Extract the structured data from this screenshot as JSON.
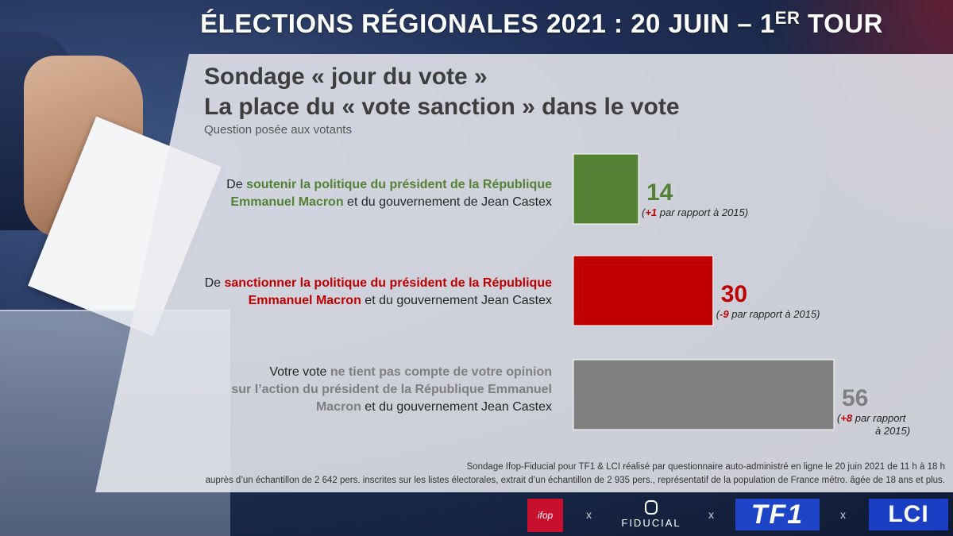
{
  "header": {
    "title_main": "ÉLECTIONS RÉGIONALES 2021 : 20 JUIN – 1",
    "title_sup": "ER",
    "title_end": " TOUR"
  },
  "titles": {
    "line1": "Sondage « jour du vote »",
    "line2": "La place du « vote sanction » dans le vote",
    "question": "Question posée aux votants"
  },
  "items": [
    {
      "label_pre": "De ",
      "label_hl": "soutenir la politique du président de la République",
      "label_hl2": "Emmanuel Macron",
      "label_post": " et du gouvernement de Jean Castex",
      "color": "#548235",
      "change_delta": "+1",
      "change_text": " par rapport à 2015)"
    },
    {
      "label_pre": "De ",
      "label_hl": "sanctionner la politique du président de la République",
      "label_hl2": "Emmanuel Macron",
      "label_post": " et du gouvernement Jean Castex",
      "color": "#c00000",
      "change_delta": "-9",
      "change_text": " par rapport à 2015)"
    },
    {
      "label_pre": "Votre vote ",
      "label_hl": "ne tient pas compte de votre opinion",
      "label_line2_pre": "sur l’action du président de la République Emmanuel",
      "label_hl2": "Macron",
      "label_post": " et du gouvernement Jean Castex",
      "color": "#808080",
      "change_delta": "+8",
      "change_text": " par rapport",
      "change_text2": "à 2015)"
    }
  ],
  "chart_data": {
    "type": "bar",
    "orientation": "horizontal",
    "categories": [
      "De soutenir la politique du président de la République Emmanuel Macron et du gouvernement de Jean Castex",
      "De sanctionner la politique du président de la République Emmanuel Macron et du gouvernement Jean Castex",
      "Votre vote ne tient pas compte de votre opinion sur l’action du président de la République Emmanuel Macron et du gouvernement Jean Castex"
    ],
    "values": [
      14,
      30,
      56
    ],
    "value_labels": [
      "14",
      "30",
      "56"
    ],
    "changes_vs_2015": [
      "+1",
      "-9",
      "+8"
    ],
    "colors": [
      "#548235",
      "#c00000",
      "#808080"
    ],
    "title": "La place du « vote sanction » dans le vote",
    "xlabel": "",
    "ylabel": "",
    "xlim": [
      0,
      56
    ],
    "grid": false,
    "legend": "none"
  },
  "source": {
    "line1": "Sondage Ifop-Fiducial pour TF1 & LCI réalisé par questionnaire auto-administré en ligne le 20 juin 2021 de 11 h à 18 h",
    "line2": "auprès d’un échantillon de 2 642 pers. inscrites sur les listes électorales, extrait d’un échantillon de 2 935 pers., représentatif de la population de France métro. âgée de 18 ans et plus."
  },
  "footer": {
    "ifop": "ifop",
    "fiducial": "FIDUCIAL",
    "tf1": "TF1",
    "lci": "LCI",
    "separator": "x"
  }
}
